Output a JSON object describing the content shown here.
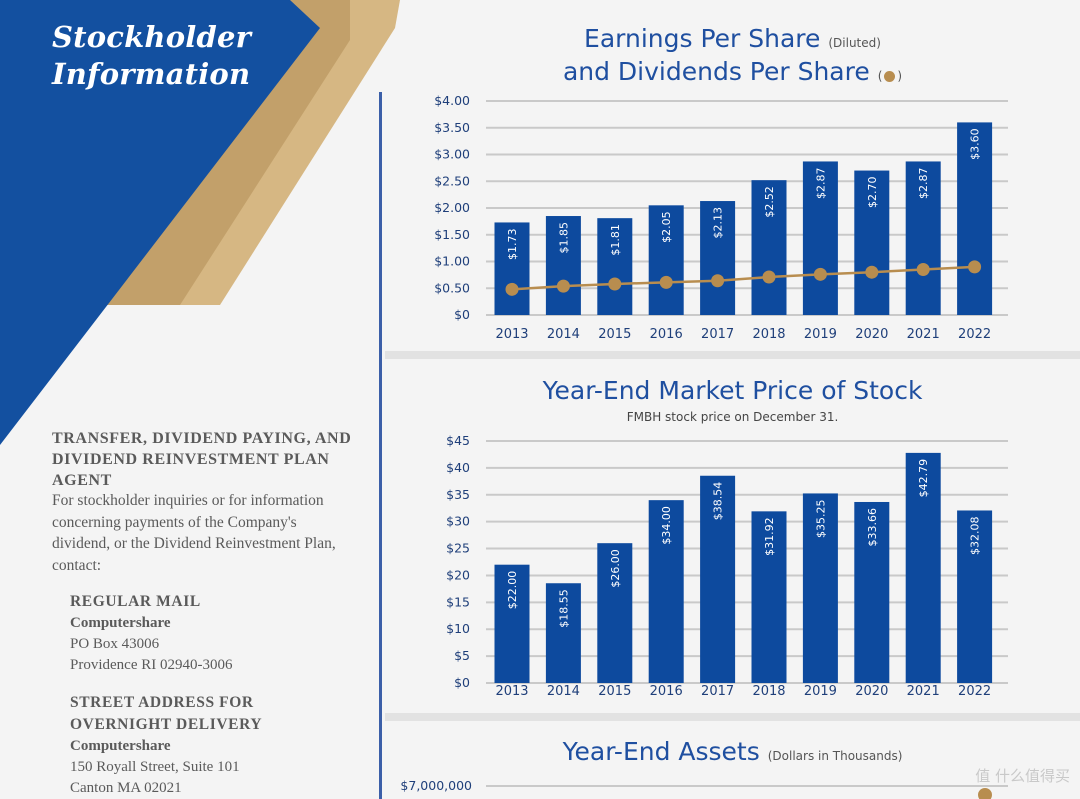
{
  "banner": {
    "line1": "Stockholder",
    "line2": "Information"
  },
  "contact": {
    "heading": "TRANSFER, DIVIDEND PAYING, AND DIVIDEND REINVESTMENT PLAN AGENT",
    "intro": "For stockholder inquiries or for information concerning payments of the Company's dividend, or the Dividend Reinvestment Plan, contact:",
    "mail": {
      "heading": "REGULAR MAIL",
      "company": "Computershare",
      "line1": "PO Box 43006",
      "line2": "Providence RI 02940-3006"
    },
    "street": {
      "heading1": "STREET ADDRESS FOR",
      "heading2": "OVERNIGHT DELIVERY",
      "company": "Computershare",
      "line1": "150 Royall Street, Suite 101",
      "line2": "Canton MA 02021"
    }
  },
  "colors": {
    "navy": "#0d4a9e",
    "gold": "#b88d4f",
    "title_blue": "#1f4fa0"
  },
  "watermark": "值 什么值得买",
  "chart_data": [
    {
      "type": "bar",
      "title_line1": "Earnings Per Share",
      "title_note1": "(Diluted)",
      "title_line2": "and Dividends Per Share",
      "categories": [
        "2013",
        "2014",
        "2015",
        "2016",
        "2017",
        "2018",
        "2019",
        "2020",
        "2021",
        "2022"
      ],
      "series": [
        {
          "name": "Earnings Per Share",
          "type": "bar",
          "values": [
            1.73,
            1.85,
            1.81,
            2.05,
            2.13,
            2.52,
            2.87,
            2.7,
            2.87,
            3.6
          ],
          "labels": [
            "$1.73",
            "$1.85",
            "$1.81",
            "$2.05",
            "$2.13",
            "$2.52",
            "$2.87",
            "$2.70",
            "$2.87",
            "$3.60"
          ]
        },
        {
          "name": "Dividends Per Share",
          "type": "line",
          "values": [
            0.48,
            0.54,
            0.58,
            0.61,
            0.64,
            0.71,
            0.76,
            0.8,
            0.85,
            0.9
          ]
        }
      ],
      "ylim": [
        0,
        4
      ],
      "yticks": [
        0,
        0.5,
        1,
        1.5,
        2,
        2.5,
        3,
        3.5,
        4
      ],
      "ytick_labels": [
        "$0",
        "$0.50",
        "$1.00",
        "$1.50",
        "$2.00",
        "$2.50",
        "$3.00",
        "$3.50",
        "$4.00"
      ],
      "grid": true
    },
    {
      "type": "bar",
      "title": "Year-End Market Price of Stock",
      "subtitle": "FMBH stock price on December 31.",
      "categories": [
        "2013",
        "2014",
        "2015",
        "2016",
        "2017",
        "2018",
        "2019",
        "2020",
        "2021",
        "2022"
      ],
      "values": [
        22.0,
        18.55,
        26.0,
        34.0,
        38.54,
        31.92,
        35.25,
        33.66,
        42.79,
        32.08
      ],
      "labels": [
        "$22.00",
        "$18.55",
        "$26.00",
        "$34.00",
        "$38.54",
        "$31.92",
        "$35.25",
        "$33.66",
        "$42.79",
        "$32.08"
      ],
      "ylim": [
        0,
        45
      ],
      "yticks": [
        0,
        5,
        10,
        15,
        20,
        25,
        30,
        35,
        40,
        45
      ],
      "ytick_labels": [
        "$0",
        "$5",
        "$10",
        "$15",
        "$20",
        "$25",
        "$30",
        "$35",
        "$40",
        "$45"
      ],
      "grid": true
    },
    {
      "type": "line",
      "title": "Year-End Assets",
      "title_note": "(Dollars in Thousands)",
      "ytick_labels": [
        "$7,000,000"
      ]
    }
  ]
}
